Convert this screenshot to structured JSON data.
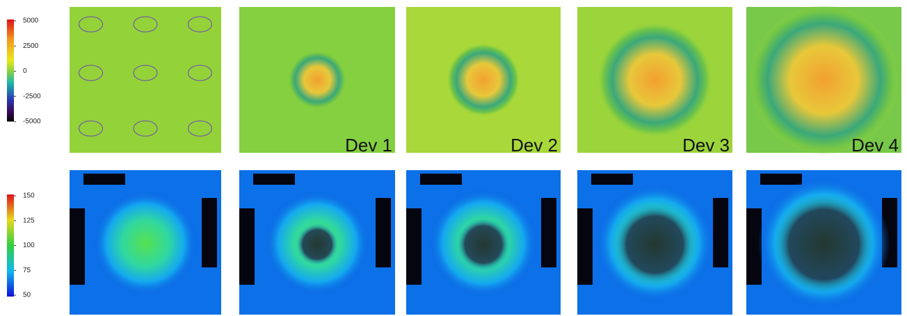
{
  "colorbars": [
    {
      "ticks": [
        5000,
        2500,
        0,
        -2500,
        -5000
      ]
    },
    {
      "ticks": [
        150,
        125,
        100,
        75,
        50
      ]
    }
  ],
  "device_labels": [
    "Dev 1",
    "Dev 2",
    "Dev 3",
    "Dev 4"
  ]
}
